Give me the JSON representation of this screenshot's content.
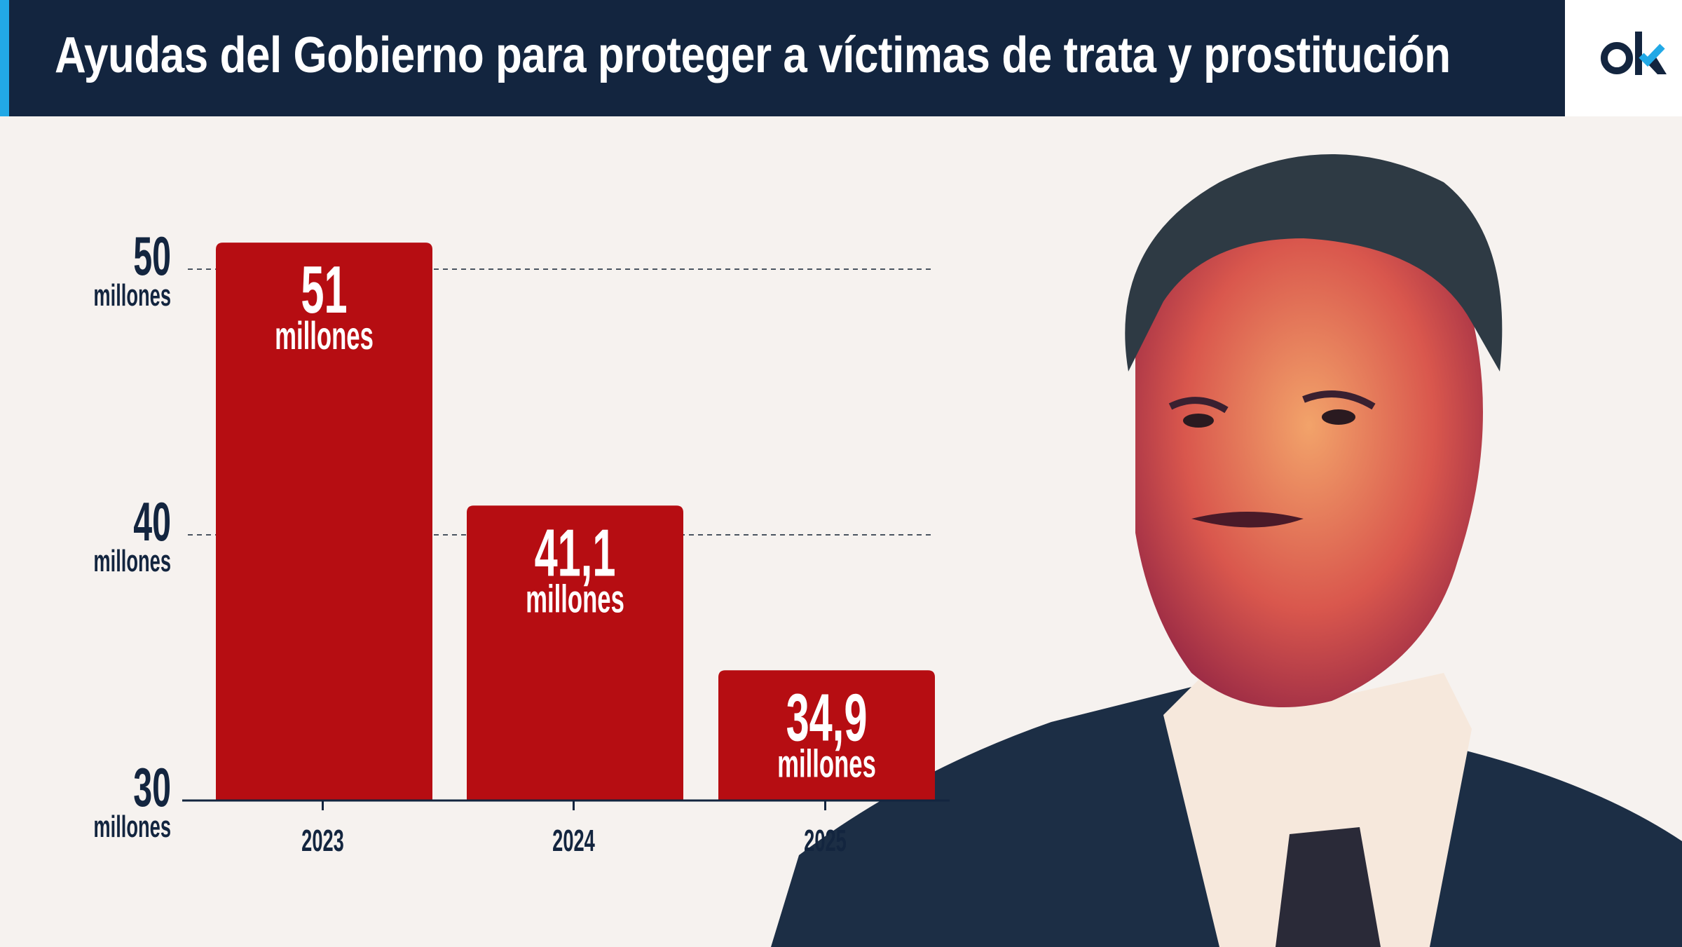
{
  "header": {
    "title": "Ayudas del Gobierno para proteger a víctimas de trata y prostitución",
    "logo_text": "ok"
  },
  "colors": {
    "bar": "#b60d12",
    "navy": "#13253f",
    "accent": "#22a9e6",
    "background": "#f6f2ef"
  },
  "chart_data": {
    "type": "bar",
    "title": "Ayudas del Gobierno para proteger a víctimas de trata y prostitución",
    "categories": [
      "2023",
      "2024",
      "2025"
    ],
    "values": [
      51,
      41.1,
      34.9
    ],
    "value_labels": [
      "51",
      "41,1",
      "34,9"
    ],
    "unit_label": "millones",
    "ylim": [
      30,
      50
    ],
    "yticks": [
      {
        "value": 50,
        "label": "50",
        "unit": "millones"
      },
      {
        "value": 40,
        "label": "40",
        "unit": "millones"
      },
      {
        "value": 30,
        "label": "30",
        "unit": "millones"
      }
    ],
    "grid": true,
    "xlabel": "",
    "ylabel": ""
  }
}
